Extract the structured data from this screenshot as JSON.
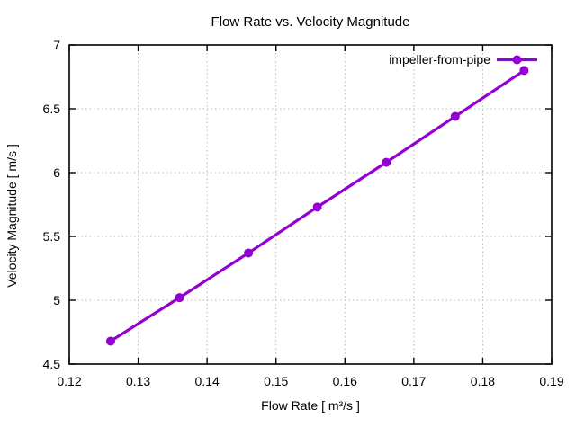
{
  "title": "Flow Rate vs. Velocity Magnitude",
  "colors": {
    "series": "#9400D3",
    "grid": "#b8b8b8",
    "axis": "#000000",
    "background": "#ffffff"
  },
  "legend": {
    "label": "impeller-from-pipe",
    "position": "top-right"
  },
  "chart_data": {
    "type": "line",
    "title": "Flow Rate vs. Velocity Magnitude",
    "xlabel": "Flow Rate [ m³/s ]",
    "ylabel": "Velocity Magnitude [ m/s ]",
    "x": [
      0.126,
      0.136,
      0.146,
      0.156,
      0.166,
      0.176,
      0.186
    ],
    "series": [
      {
        "name": "impeller-from-pipe",
        "values": [
          4.68,
          5.02,
          5.37,
          5.73,
          6.08,
          6.44,
          6.8
        ]
      }
    ],
    "xlim": [
      0.12,
      0.19
    ],
    "ylim": [
      4.5,
      7
    ],
    "xticks": [
      0.12,
      0.13,
      0.14,
      0.15,
      0.16,
      0.17,
      0.18,
      0.19
    ],
    "xtick_labels": [
      "0.12",
      "0.13",
      "0.14",
      "0.15",
      "0.16",
      "0.17",
      "0.18",
      "0.19"
    ],
    "yticks": [
      4.5,
      5,
      5.5,
      6,
      6.5,
      7
    ],
    "ytick_labels": [
      "4.5",
      "5",
      "5.5",
      "6",
      "6.5",
      "7"
    ],
    "grid": true,
    "legend_position": "top-right",
    "marker": "circle"
  }
}
